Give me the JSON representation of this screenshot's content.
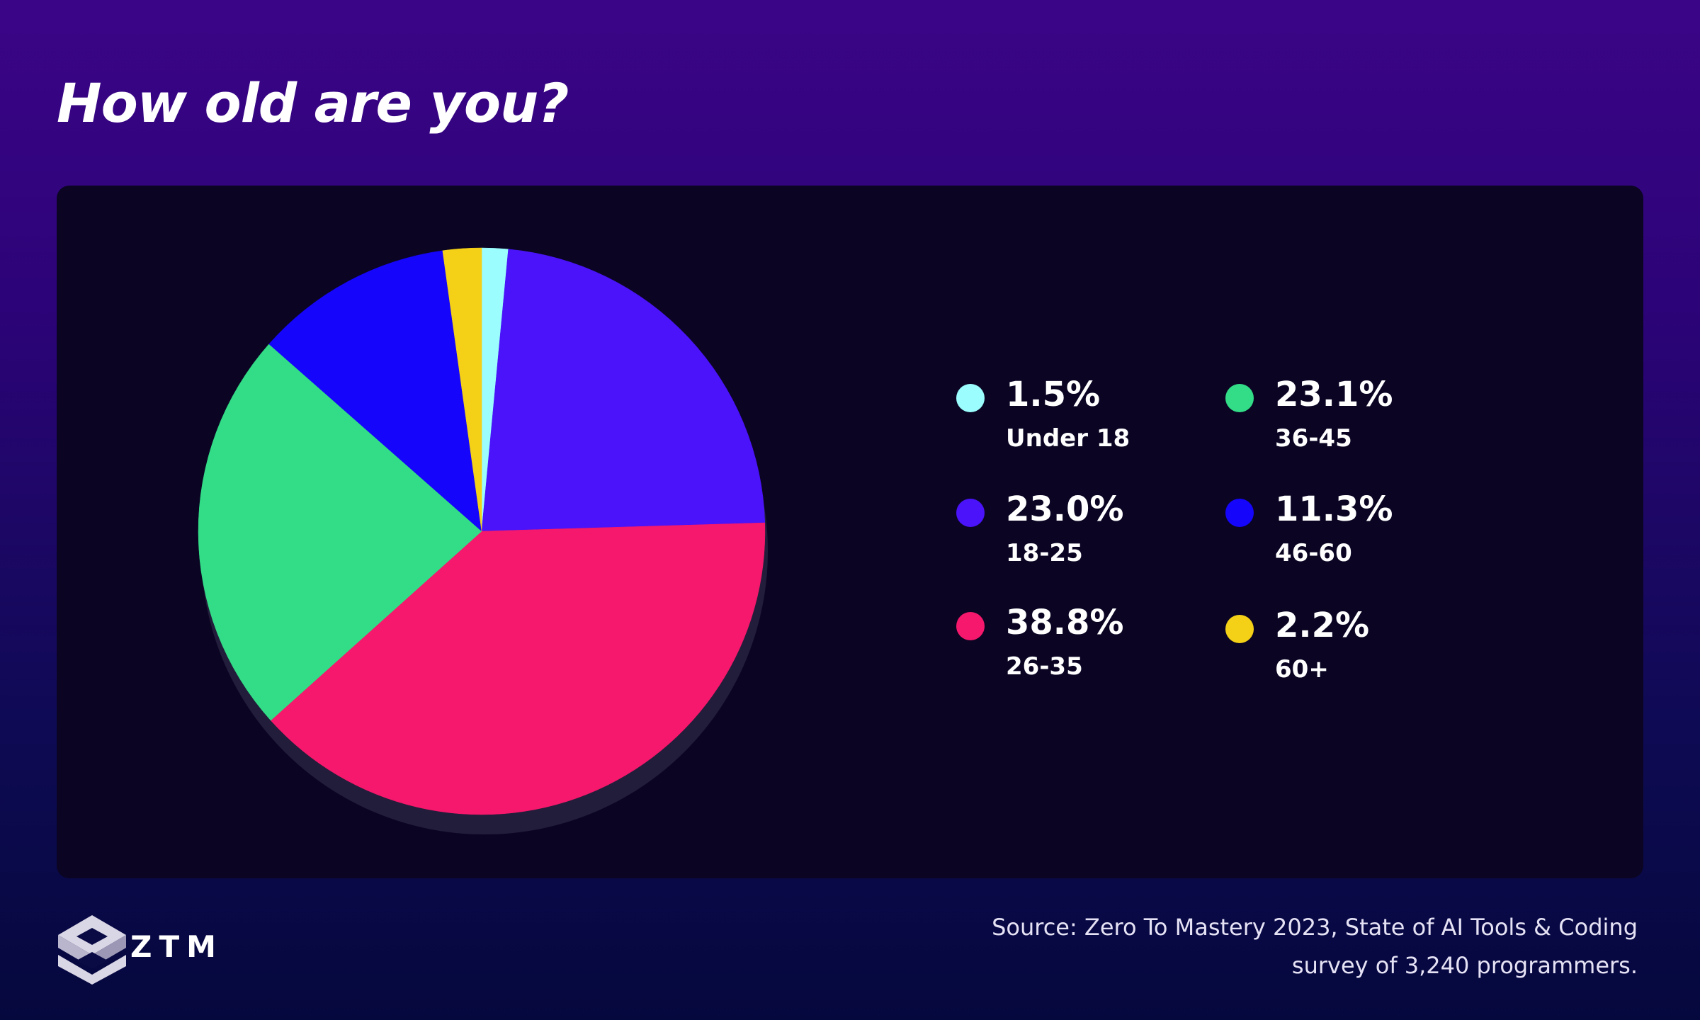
{
  "title": "How old are you?",
  "chart_data": {
    "type": "pie",
    "title": "How old are you?",
    "categories": [
      "Under 18",
      "18-25",
      "26-35",
      "36-45",
      "46-60",
      "60+"
    ],
    "values": [
      1.5,
      23.0,
      38.8,
      23.1,
      11.3,
      2.2
    ],
    "value_labels": [
      "1.5%",
      "23.0%",
      "38.8%",
      "23.1%",
      "11.3%",
      "2.2%"
    ],
    "colors": [
      "#9bfdfd",
      "#4a13f9",
      "#f5186c",
      "#33dd87",
      "#1505fb",
      "#f4d017"
    ],
    "start_angle_degrees": 0,
    "direction": "clockwise",
    "legend_position": "right"
  },
  "legend": [
    {
      "pct": "1.5%",
      "label": "Under 18",
      "color": "#9bfdfd"
    },
    {
      "pct": "23.0%",
      "label": "18-25",
      "color": "#4a13f9"
    },
    {
      "pct": "38.8%",
      "label": "26-35",
      "color": "#f5186c"
    },
    {
      "pct": "23.1%",
      "label": "36-45",
      "color": "#33dd87"
    },
    {
      "pct": "11.3%",
      "label": "46-60",
      "color": "#1505fb"
    },
    {
      "pct": "2.2%",
      "label": "60+",
      "color": "#f4d017"
    }
  ],
  "brand": {
    "name": "ZTM",
    "icon": "ztm-logo-icon"
  },
  "source": {
    "line1": "Source: Zero To Mastery 2023, State of AI Tools & Coding",
    "line2": "survey of 3,240 programmers."
  },
  "colors": {
    "panel": "#0b0523",
    "pie_shadow": "#221d3a"
  }
}
